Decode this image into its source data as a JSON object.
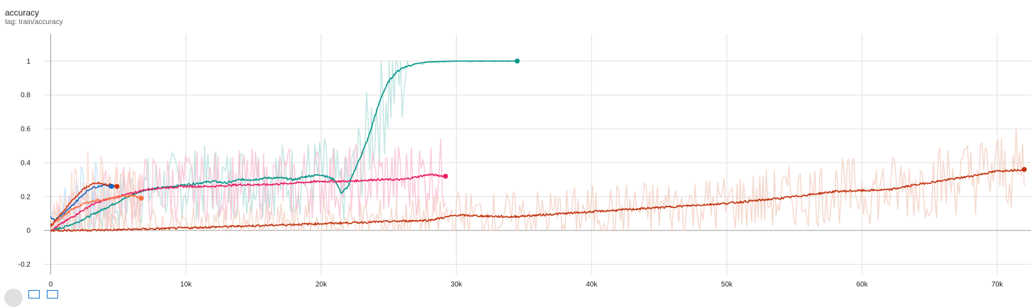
{
  "header": {
    "title": "accuracy",
    "tag": "tag: train/accuracy"
  },
  "chart_data": {
    "type": "line",
    "title": "accuracy",
    "xlabel": "",
    "ylabel": "",
    "xlim": [
      -500,
      72500
    ],
    "ylim": [
      -0.26,
      1.16
    ],
    "xticks": [
      0,
      10000,
      20000,
      30000,
      40000,
      50000,
      60000,
      70000
    ],
    "xtick_labels": [
      "0",
      "10k",
      "20k",
      "30k",
      "40k",
      "50k",
      "60k",
      "70k"
    ],
    "yticks": [
      -0.2,
      0,
      0.2,
      0.4,
      0.6,
      0.8,
      1
    ],
    "ytick_labels": [
      "-0.2",
      "0",
      "0.2",
      "0.4",
      "0.6",
      "0.8",
      "1"
    ],
    "grid": true,
    "series": [
      {
        "color": "#009688",
        "raw_color": "#b2dfdb",
        "x": [
          0,
          1000,
          2000,
          3000,
          4000,
          5000,
          6000,
          7000,
          8000,
          9000,
          10000,
          11000,
          12000,
          13000,
          14000,
          15000,
          16000,
          17000,
          18000,
          19000,
          20000,
          21000,
          21500,
          22000,
          22500,
          23000,
          23500,
          24000,
          24500,
          25000,
          25500,
          26000,
          27000,
          28000,
          29000,
          30000,
          31000,
          32000,
          33000,
          34500
        ],
        "values": [
          0.0,
          0.02,
          0.05,
          0.09,
          0.13,
          0.17,
          0.21,
          0.24,
          0.25,
          0.26,
          0.27,
          0.28,
          0.29,
          0.28,
          0.3,
          0.3,
          0.31,
          0.31,
          0.3,
          0.32,
          0.33,
          0.3,
          0.22,
          0.26,
          0.36,
          0.45,
          0.55,
          0.68,
          0.8,
          0.88,
          0.93,
          0.96,
          0.985,
          0.995,
          0.998,
          1.0,
          1.0,
          1.0,
          1.0,
          1.0
        ]
      },
      {
        "color": "#e91e63",
        "raw_color": "#f8bbd0",
        "x": [
          0,
          1000,
          2000,
          3000,
          4000,
          5000,
          6000,
          7000,
          8000,
          10000,
          12000,
          14000,
          16000,
          18000,
          20000,
          22000,
          24000,
          26000,
          28000,
          29200
        ],
        "values": [
          0.0,
          0.05,
          0.1,
          0.15,
          0.18,
          0.2,
          0.22,
          0.24,
          0.25,
          0.26,
          0.26,
          0.27,
          0.27,
          0.28,
          0.29,
          0.29,
          0.3,
          0.3,
          0.33,
          0.32
        ]
      },
      {
        "color": "#ff7043",
        "raw_color": "#ffccbc",
        "x": [
          0,
          500,
          1000,
          1500,
          2000,
          2500,
          3000,
          3500,
          4000,
          4500,
          5000,
          5500,
          6000,
          6700
        ],
        "values": [
          0.02,
          0.06,
          0.09,
          0.12,
          0.14,
          0.16,
          0.17,
          0.18,
          0.18,
          0.19,
          0.2,
          0.2,
          0.21,
          0.19
        ]
      },
      {
        "color": "#1565c0",
        "raw_color": "#bbdefb",
        "x": [
          0,
          300,
          600,
          1000,
          1500,
          2000,
          2500,
          3000,
          3500,
          4000,
          4500
        ],
        "values": [
          0.08,
          0.06,
          0.08,
          0.1,
          0.14,
          0.18,
          0.22,
          0.25,
          0.26,
          0.27,
          0.26
        ]
      },
      {
        "color": "#cc3311",
        "raw_color": "#f6d5c8",
        "x": [
          0,
          500,
          1000,
          1500,
          2000,
          2500,
          3000,
          3500,
          4000,
          4500,
          4900
        ],
        "values": [
          0.03,
          0.07,
          0.12,
          0.17,
          0.21,
          0.25,
          0.27,
          0.28,
          0.27,
          0.27,
          0.26
        ]
      },
      {
        "color": "#c1330f",
        "raw_color": "#f2cdbf",
        "x": [
          0,
          4000,
          8000,
          12000,
          16000,
          20000,
          24000,
          28000,
          30000,
          34000,
          38000,
          42000,
          46000,
          50000,
          54000,
          58000,
          62000,
          64000,
          68000,
          70000,
          72000
        ],
        "values": [
          0.0,
          0.002,
          0.01,
          0.02,
          0.03,
          0.04,
          0.05,
          0.06,
          0.09,
          0.08,
          0.1,
          0.12,
          0.14,
          0.16,
          0.19,
          0.23,
          0.24,
          0.27,
          0.32,
          0.35,
          0.36
        ]
      }
    ]
  }
}
